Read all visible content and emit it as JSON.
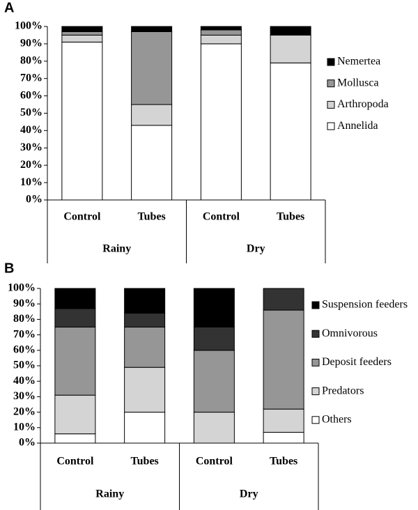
{
  "chart_data": [
    {
      "type": "bar",
      "stacked": true,
      "panel": "A",
      "categories": [
        "Control",
        "Tubes",
        "Control",
        "Tubes"
      ],
      "groups": [
        "Rainy",
        "Dry"
      ],
      "series": [
        {
          "name": "Annelida",
          "color": "#ffffff",
          "values": [
            91,
            43,
            90,
            79
          ]
        },
        {
          "name": "Arthropoda",
          "color": "#d4d4d4",
          "values": [
            4,
            12,
            5,
            16
          ]
        },
        {
          "name": "Mollusca",
          "color": "#969696",
          "values": [
            2,
            42,
            3,
            0
          ]
        },
        {
          "name": "Nemertea",
          "color": "#000000",
          "values": [
            3,
            3,
            2,
            5
          ]
        }
      ],
      "ylim": [
        0,
        100
      ],
      "yticks": [
        {
          "value": 0,
          "label": "0%"
        },
        {
          "value": 10,
          "label": "10%"
        },
        {
          "value": 20,
          "label": "20%"
        },
        {
          "value": 30,
          "label": "30%"
        },
        {
          "value": 40,
          "label": "40%"
        },
        {
          "value": 50,
          "label": "50%"
        },
        {
          "value": 60,
          "label": "60%"
        },
        {
          "value": 70,
          "label": "70%"
        },
        {
          "value": 80,
          "label": "80%"
        },
        {
          "value": 90,
          "label": "90%"
        },
        {
          "value": 100,
          "label": "100%"
        }
      ]
    },
    {
      "type": "bar",
      "stacked": true,
      "panel": "B",
      "categories": [
        "Control",
        "Tubes",
        "Control",
        "Tubes"
      ],
      "groups": [
        "Rainy",
        "Dry"
      ],
      "series": [
        {
          "name": "Others",
          "color": "#ffffff",
          "values": [
            6,
            20,
            0,
            7
          ]
        },
        {
          "name": "Predators",
          "color": "#d4d4d4",
          "values": [
            25,
            29,
            20,
            15
          ]
        },
        {
          "name": "Deposit feeders",
          "color": "#969696",
          "values": [
            44,
            26,
            40,
            64
          ]
        },
        {
          "name": "Omnivorous",
          "color": "#333333",
          "values": [
            12,
            9,
            15,
            14
          ]
        },
        {
          "name": "Suspension feeders",
          "color": "#000000",
          "values": [
            13,
            16,
            25,
            0
          ]
        }
      ],
      "ylim": [
        0,
        100
      ],
      "yticks": [
        {
          "value": 0,
          "label": "0%"
        },
        {
          "value": 10,
          "label": "10%"
        },
        {
          "value": 20,
          "label": "20%"
        },
        {
          "value": 30,
          "label": "30%"
        },
        {
          "value": 40,
          "label": "40%"
        },
        {
          "value": 50,
          "label": "50%"
        },
        {
          "value": 60,
          "label": "60%"
        },
        {
          "value": 70,
          "label": "70%"
        },
        {
          "value": 80,
          "label": "80%"
        },
        {
          "value": 90,
          "label": "90%"
        },
        {
          "value": 100,
          "label": "100%"
        }
      ]
    }
  ]
}
